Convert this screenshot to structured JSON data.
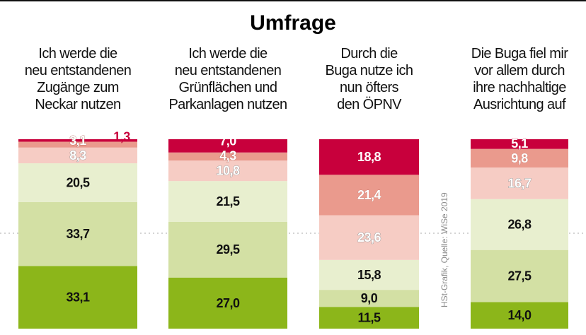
{
  "chart_data": {
    "type": "bar",
    "stacked": true,
    "percent": true,
    "title": "Umfrage",
    "categories": [
      [
        "Ich werde die",
        "neu entstandenen",
        "Zugänge zum",
        "Neckar nutzen"
      ],
      [
        "Ich werde die",
        "neu entstandenen",
        "Grünflächen und",
        "Parkanlagen nutzen"
      ],
      [
        "Durch die",
        "Buga nutze ich",
        "nun öfters",
        "den ÖPNV"
      ],
      [
        "Die Buga fiel mir",
        "vor allem durch",
        "ihre nachhaltige",
        "Ausrichtung auf"
      ]
    ],
    "series_colors": [
      "#8cb61a",
      "#d3e0a4",
      "#e8efcf",
      "#f6ccc4",
      "#ea9a8d",
      "#c8003c"
    ],
    "bars": [
      {
        "values": [
          33.1,
          33.7,
          20.5,
          8.3,
          3.1,
          1.3
        ],
        "labels": [
          "33,1",
          "33,7",
          "20,5",
          "8,3",
          "3,1",
          "1,3"
        ]
      },
      {
        "values": [
          27.0,
          29.5,
          21.5,
          10.8,
          4.3,
          7.0
        ],
        "labels": [
          "27,0",
          "29,5",
          "21,5",
          "10,8",
          "4,3",
          "7,0"
        ]
      },
      {
        "values": [
          11.5,
          9.0,
          15.8,
          23.6,
          21.4,
          18.8
        ],
        "labels": [
          "11,5",
          "9,0",
          "15,8",
          "23,6",
          "21,4",
          "18,8"
        ]
      },
      {
        "values": [
          14.0,
          27.5,
          26.8,
          16.7,
          9.8,
          5.1
        ],
        "labels": [
          "14,0",
          "27,5",
          "26,8",
          "16,7",
          "9,8",
          "5,1"
        ]
      }
    ],
    "ylim": [
      0,
      100
    ],
    "reference_line": 50,
    "source": "HSt-Grafik, Quelle: WiSe 2019"
  }
}
